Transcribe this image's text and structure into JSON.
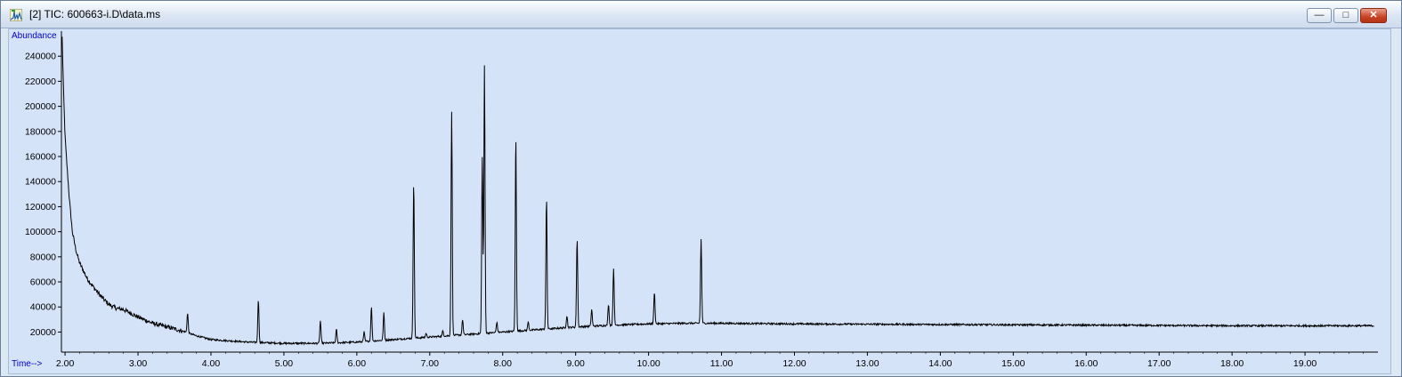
{
  "window": {
    "title": "[2] TIC: 600663-i.D\\data.ms",
    "buttons": {
      "minimize": "—",
      "maximize": "□",
      "close": "✕"
    }
  },
  "colors": {
    "plot_background": "#d5e3f8",
    "trace": "#000000",
    "axis_label": "#0000cc",
    "frame": "#000000"
  },
  "chart_data": {
    "type": "line",
    "title": "",
    "ylabel": "Abundance",
    "xlabel": "Time-->",
    "xlim": [
      1.95,
      20.0
    ],
    "ylim": [
      4000,
      260000
    ],
    "x_ticks": [
      "2.00",
      "3.00",
      "4.00",
      "5.00",
      "6.00",
      "7.00",
      "8.00",
      "9.00",
      "10.00",
      "11.00",
      "12.00",
      "13.00",
      "14.00",
      "15.00",
      "16.00",
      "17.00",
      "18.00",
      "19.00"
    ],
    "y_ticks": [
      "20000",
      "40000",
      "60000",
      "80000",
      "100000",
      "120000",
      "140000",
      "160000",
      "180000",
      "200000",
      "220000",
      "240000"
    ],
    "series": [
      {
        "baseline": [
          [
            1.96,
            255000
          ],
          [
            1.98,
            210000
          ],
          [
            2.0,
            175000
          ],
          [
            2.03,
            150000
          ],
          [
            2.06,
            125000
          ],
          [
            2.1,
            100000
          ],
          [
            2.15,
            85000
          ],
          [
            2.2,
            75000
          ],
          [
            2.3,
            63000
          ],
          [
            2.4,
            55000
          ],
          [
            2.5,
            48000
          ],
          [
            2.6,
            42000
          ],
          [
            2.7,
            39000
          ],
          [
            2.8,
            38000
          ],
          [
            2.9,
            35000
          ],
          [
            3.0,
            32000
          ],
          [
            3.2,
            27000
          ],
          [
            3.4,
            24000
          ],
          [
            3.6,
            21000
          ],
          [
            3.8,
            17000
          ],
          [
            4.0,
            14000
          ],
          [
            4.5,
            12000
          ],
          [
            5.0,
            11000
          ],
          [
            5.5,
            11000
          ],
          [
            6.0,
            12000
          ],
          [
            6.5,
            14000
          ],
          [
            7.0,
            16000
          ],
          [
            7.5,
            18000
          ],
          [
            8.0,
            20000
          ],
          [
            8.5,
            22000
          ],
          [
            9.0,
            24000
          ],
          [
            9.5,
            25500
          ],
          [
            10.0,
            26500
          ],
          [
            10.5,
            27000
          ],
          [
            11.0,
            27000
          ],
          [
            12.0,
            26500
          ],
          [
            14.0,
            26000
          ],
          [
            16.0,
            25500
          ],
          [
            18.0,
            25000
          ],
          [
            19.95,
            25000
          ]
        ],
        "peaks": [
          [
            3.68,
            35000
          ],
          [
            4.65,
            46000
          ],
          [
            5.5,
            29000
          ],
          [
            5.72,
            22000
          ],
          [
            6.1,
            20000
          ],
          [
            6.2,
            40000
          ],
          [
            6.37,
            35000
          ],
          [
            6.78,
            140000
          ],
          [
            6.95,
            19000
          ],
          [
            7.18,
            21000
          ],
          [
            7.3,
            196000
          ],
          [
            7.45,
            30000
          ],
          [
            7.72,
            160000
          ],
          [
            7.75,
            232000
          ],
          [
            7.92,
            28000
          ],
          [
            8.18,
            176000
          ],
          [
            8.35,
            28000
          ],
          [
            8.6,
            127000
          ],
          [
            8.88,
            33000
          ],
          [
            9.02,
            95000
          ],
          [
            9.22,
            38000
          ],
          [
            9.45,
            42000
          ],
          [
            9.52,
            71000
          ],
          [
            10.08,
            52000
          ],
          [
            10.72,
            94000
          ]
        ]
      }
    ]
  }
}
